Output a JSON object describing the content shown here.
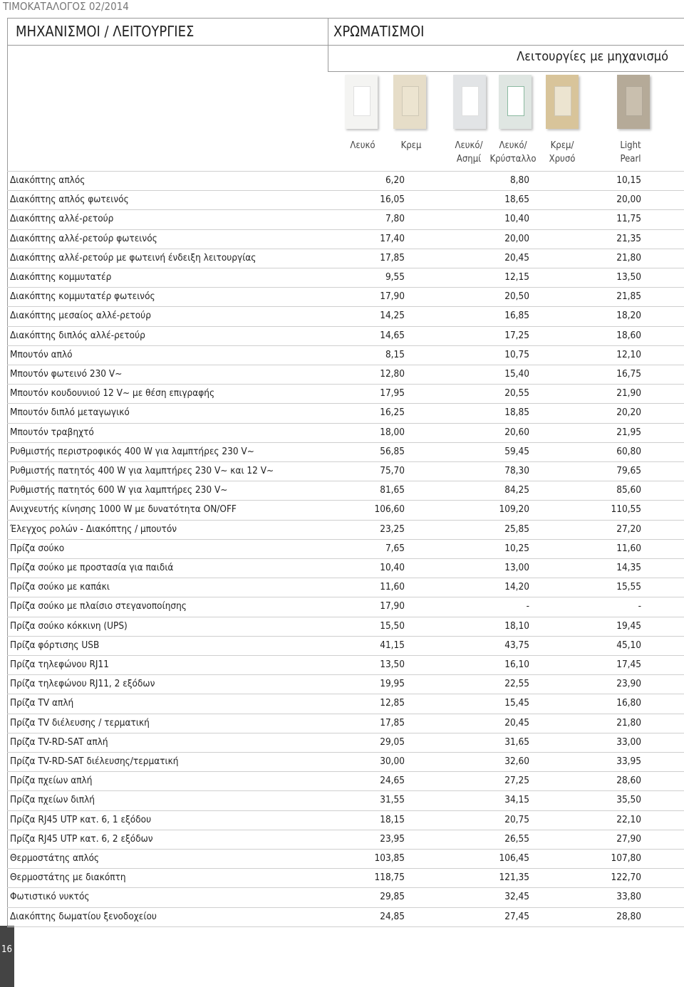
{
  "header": {
    "catalog": "ΤΙΜΟΚΑΤΑΛΟΓΟΣ 02/2014",
    "left_title": "ΜΗΧΑΝΙΣΜΟΙ / ΛΕΙΤΟΥΡΓΙΕΣ",
    "right_title": "ΧΡΩΜΑΤΙΣΜΟΙ",
    "subtitle": "Λειτουργίες με μηχανισμό"
  },
  "finishes": [
    "Λευκό",
    "Κρεμ",
    "Λευκό/\nΑσημί",
    "Λευκό/\nΚρύσταλλο",
    "Κρεμ/\nΧρυσό",
    "Light\nPearl"
  ],
  "table": {
    "rows": [
      [
        "Διακόπτης απλός",
        "6,20",
        "8,80",
        "10,15"
      ],
      [
        "Διακόπτης απλός φωτεινός",
        "16,05",
        "18,65",
        "20,00"
      ],
      [
        "Διακόπτης αλλέ-ρετούρ",
        "7,80",
        "10,40",
        "11,75"
      ],
      [
        "Διακόπτης αλλέ-ρετούρ φωτεινός",
        "17,40",
        "20,00",
        "21,35"
      ],
      [
        "Διακόπτης αλλέ-ρετούρ με φωτεινή ένδειξη λειτουργίας",
        "17,85",
        "20,45",
        "21,80"
      ],
      [
        "Διακόπτης κομμυτατέρ",
        "9,55",
        "12,15",
        "13,50"
      ],
      [
        "Διακόπτης κομμυτατέρ φωτεινός",
        "17,90",
        "20,50",
        "21,85"
      ],
      [
        "Διακόπτης μεσαίος αλλέ-ρετούρ",
        "14,25",
        "16,85",
        "18,20"
      ],
      [
        "Διακόπτης διπλός αλλέ-ρετούρ",
        "14,65",
        "17,25",
        "18,60"
      ],
      [
        "Μπουτόν απλό",
        "8,15",
        "10,75",
        "12,10"
      ],
      [
        "Μπουτόν φωτεινό 230 V~",
        "12,80",
        "15,40",
        "16,75"
      ],
      [
        "Μπουτόν κουδουνιού 12 V~ με θέση επιγραφής",
        "17,95",
        "20,55",
        "21,90"
      ],
      [
        "Μπουτόν διπλό μεταγωγικό",
        "16,25",
        "18,85",
        "20,20"
      ],
      [
        "Μπουτόν τραβηχτό",
        "18,00",
        "20,60",
        "21,95"
      ],
      [
        "Ρυθμιστής περιστροφικός 400 W για λαμπτήρες 230 V~",
        "56,85",
        "59,45",
        "60,80"
      ],
      [
        "Ρυθμιστής πατητός 400 W για λαμπτήρες 230 V~ και 12 V~",
        "75,70",
        "78,30",
        "79,65"
      ],
      [
        "Ρυθμιστής πατητός 600 W για λαμπτήρες 230 V~",
        "81,65",
        "84,25",
        "85,60"
      ],
      [
        "Ανιχνευτής κίνησης 1000 W με δυνατότητα ON/OFF",
        "106,60",
        "109,20",
        "110,55"
      ],
      [
        "Έλεγχος ρολών - Διακόπτης / μπουτόν",
        "23,25",
        "25,85",
        "27,20"
      ],
      [
        "Πρίζα σούκο",
        "7,65",
        "10,25",
        "11,60"
      ],
      [
        "Πρίζα σούκο με προστασία για παιδιά",
        "10,40",
        "13,00",
        "14,35"
      ],
      [
        "Πρίζα σούκο με καπάκι",
        "11,60",
        "14,20",
        "15,55"
      ],
      [
        "Πρίζα σούκο με πλαίσιο στεγανοποίησης",
        "17,90",
        "-",
        "-"
      ],
      [
        "Πρίζα σούκο κόκκινη (UPS)",
        "15,50",
        "18,10",
        "19,45"
      ],
      [
        "Πρίζα φόρτισης USB",
        "41,15",
        "43,75",
        "45,10"
      ],
      [
        "Πρίζα τηλεφώνου RJ11",
        "13,50",
        "16,10",
        "17,45"
      ],
      [
        "Πρίζα τηλεφώνου RJ11, 2 εξόδων",
        "19,95",
        "22,55",
        "23,90"
      ],
      [
        "Πρίζα TV απλή",
        "12,85",
        "15,45",
        "16,80"
      ],
      [
        "Πρίζα TV διέλευσης / τερματική",
        "17,85",
        "20,45",
        "21,80"
      ],
      [
        "Πρίζα TV-RD-SAT απλή",
        "29,05",
        "31,65",
        "33,00"
      ],
      [
        "Πρίζα TV-RD-SAT διέλευσης/τερματική",
        "30,00",
        "32,60",
        "33,95"
      ],
      [
        "Πρίζα πχείων απλή",
        "24,65",
        "27,25",
        "28,60"
      ],
      [
        "Πρίζα πχείων διπλή",
        "31,55",
        "34,15",
        "35,50"
      ],
      [
        "Πρίζα RJ45 UTP κατ. 6, 1 εξόδου",
        "18,15",
        "20,75",
        "22,10"
      ],
      [
        "Πρίζα RJ45 UTP κατ. 6, 2 εξόδων",
        "23,95",
        "26,55",
        "27,90"
      ],
      [
        "Θερμοστάτης απλός",
        "103,85",
        "106,45",
        "107,80"
      ],
      [
        "Θερμοστάτης με διακόπτη",
        "118,75",
        "121,35",
        "122,70"
      ],
      [
        "Φωτιστικό νυκτός",
        "29,85",
        "32,45",
        "33,80"
      ],
      [
        "Διακόπτης δωματίου ξενοδοχείου",
        "24,85",
        "27,45",
        "28,80"
      ]
    ]
  },
  "page_number": "16"
}
